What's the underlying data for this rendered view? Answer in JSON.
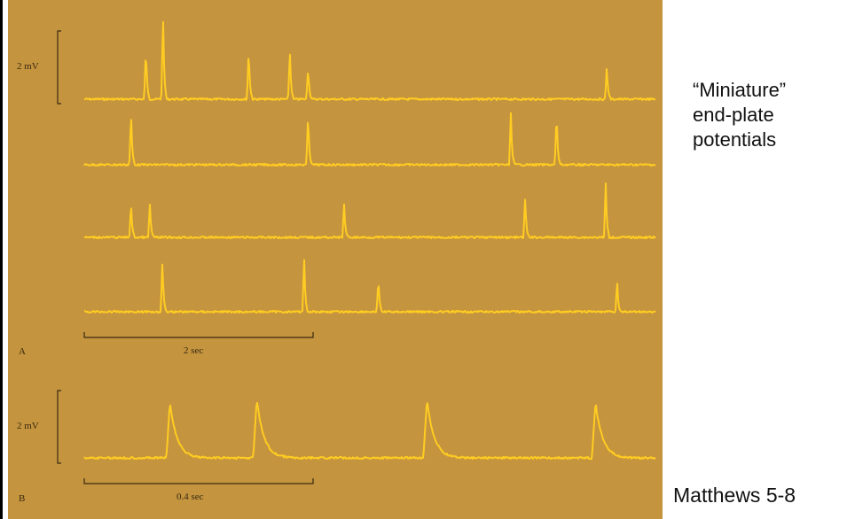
{
  "panel_a": {
    "label": "A",
    "scale_voltage": "2 mV",
    "scale_time": "2 sec",
    "traces": [
      {
        "spikes": [
          {
            "t": 0.108,
            "a": 0.85
          },
          {
            "t": 0.138,
            "a": 1.4
          },
          {
            "t": 0.288,
            "a": 0.85
          },
          {
            "t": 0.36,
            "a": 0.82
          },
          {
            "t": 0.392,
            "a": 0.55
          },
          {
            "t": 0.915,
            "a": 0.55
          }
        ]
      },
      {
        "spikes": [
          {
            "t": 0.082,
            "a": 0.85
          },
          {
            "t": 0.392,
            "a": 0.85
          },
          {
            "t": 0.747,
            "a": 0.85
          },
          {
            "t": 0.827,
            "a": 0.85
          }
        ]
      },
      {
        "spikes": [
          {
            "t": 0.082,
            "a": 0.55
          },
          {
            "t": 0.115,
            "a": 0.55
          },
          {
            "t": 0.455,
            "a": 0.55
          },
          {
            "t": 0.772,
            "a": 0.65
          },
          {
            "t": 0.913,
            "a": 0.88
          }
        ]
      },
      {
        "spikes": [
          {
            "t": 0.137,
            "a": 0.85
          },
          {
            "t": 0.385,
            "a": 0.88
          },
          {
            "t": 0.515,
            "a": 0.55
          },
          {
            "t": 0.933,
            "a": 0.5
          }
        ]
      }
    ]
  },
  "panel_b": {
    "label": "B",
    "scale_voltage": "2 mV",
    "scale_time": "0.4 sec",
    "spikes": [
      {
        "t": 0.15,
        "a": 0.9
      },
      {
        "t": 0.302,
        "a": 0.95
      },
      {
        "t": 0.6,
        "a": 0.95
      },
      {
        "t": 0.895,
        "a": 0.9
      }
    ]
  },
  "caption": {
    "line1": "“Miniature”",
    "line2": "end-plate",
    "line3": "potentials",
    "reference": "Matthews 5-8"
  },
  "colors": {
    "panel_background": "#c4943e",
    "trace": "#ffcc22",
    "scale_bar": "#3a2a12"
  }
}
